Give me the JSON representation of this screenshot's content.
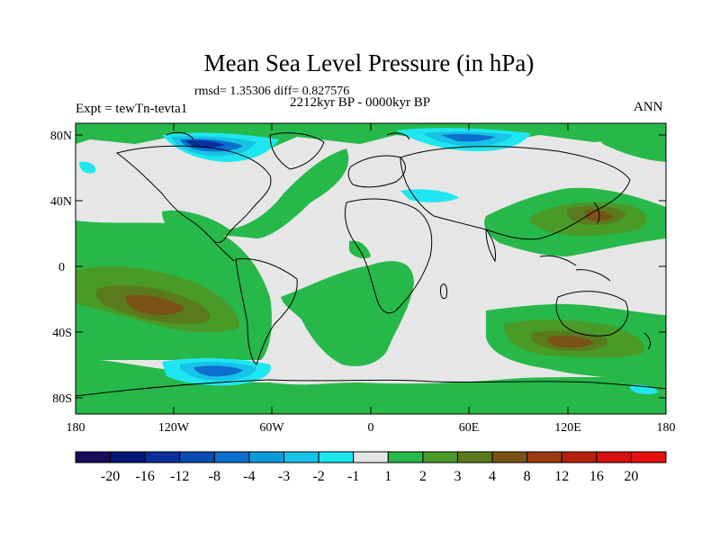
{
  "header": {
    "title": "Mean Sea Level Pressure (in hPa)",
    "stats": "rmsd= 1.35306 diff= 0.827576",
    "period": "2212kyr BP - 0000kyr BP",
    "experiment": "Expt = tewTn-tevta1",
    "season": "ANN"
  },
  "map": {
    "lat_ticks": [
      "80N",
      "40N",
      "0",
      "40S",
      "80S"
    ],
    "lon_ticks": [
      "180",
      "120W",
      "60W",
      "0",
      "60E",
      "120E",
      "180"
    ]
  },
  "colorbar": {
    "labels": [
      "-20",
      "-16",
      "-12",
      "-8",
      "-4",
      "-3",
      "-2",
      "-1",
      "1",
      "2",
      "3",
      "4",
      "8",
      "12",
      "16",
      "20"
    ],
    "colors": [
      "#1a0b5e",
      "#04187a",
      "#0b2f9a",
      "#0b4cb4",
      "#0a6fce",
      "#0f9bd8",
      "#16c2e6",
      "#1ee6f0",
      "#e6e6e6",
      "#27b84a",
      "#4a9a28",
      "#5a7a1e",
      "#7a5216",
      "#9a3a12",
      "#b8200e",
      "#d60f0f",
      "#e8100e"
    ]
  },
  "palette": {
    "gray": "#e6e6e6",
    "green": "#27b84a",
    "olive": "#4a9a28",
    "darkolive": "#5a7a1e",
    "brown": "#7a5216",
    "lightblue": "#1ee6f0",
    "cyan": "#16c2e6",
    "blue": "#0a6fce",
    "darkblue": "#0b2f9a"
  }
}
